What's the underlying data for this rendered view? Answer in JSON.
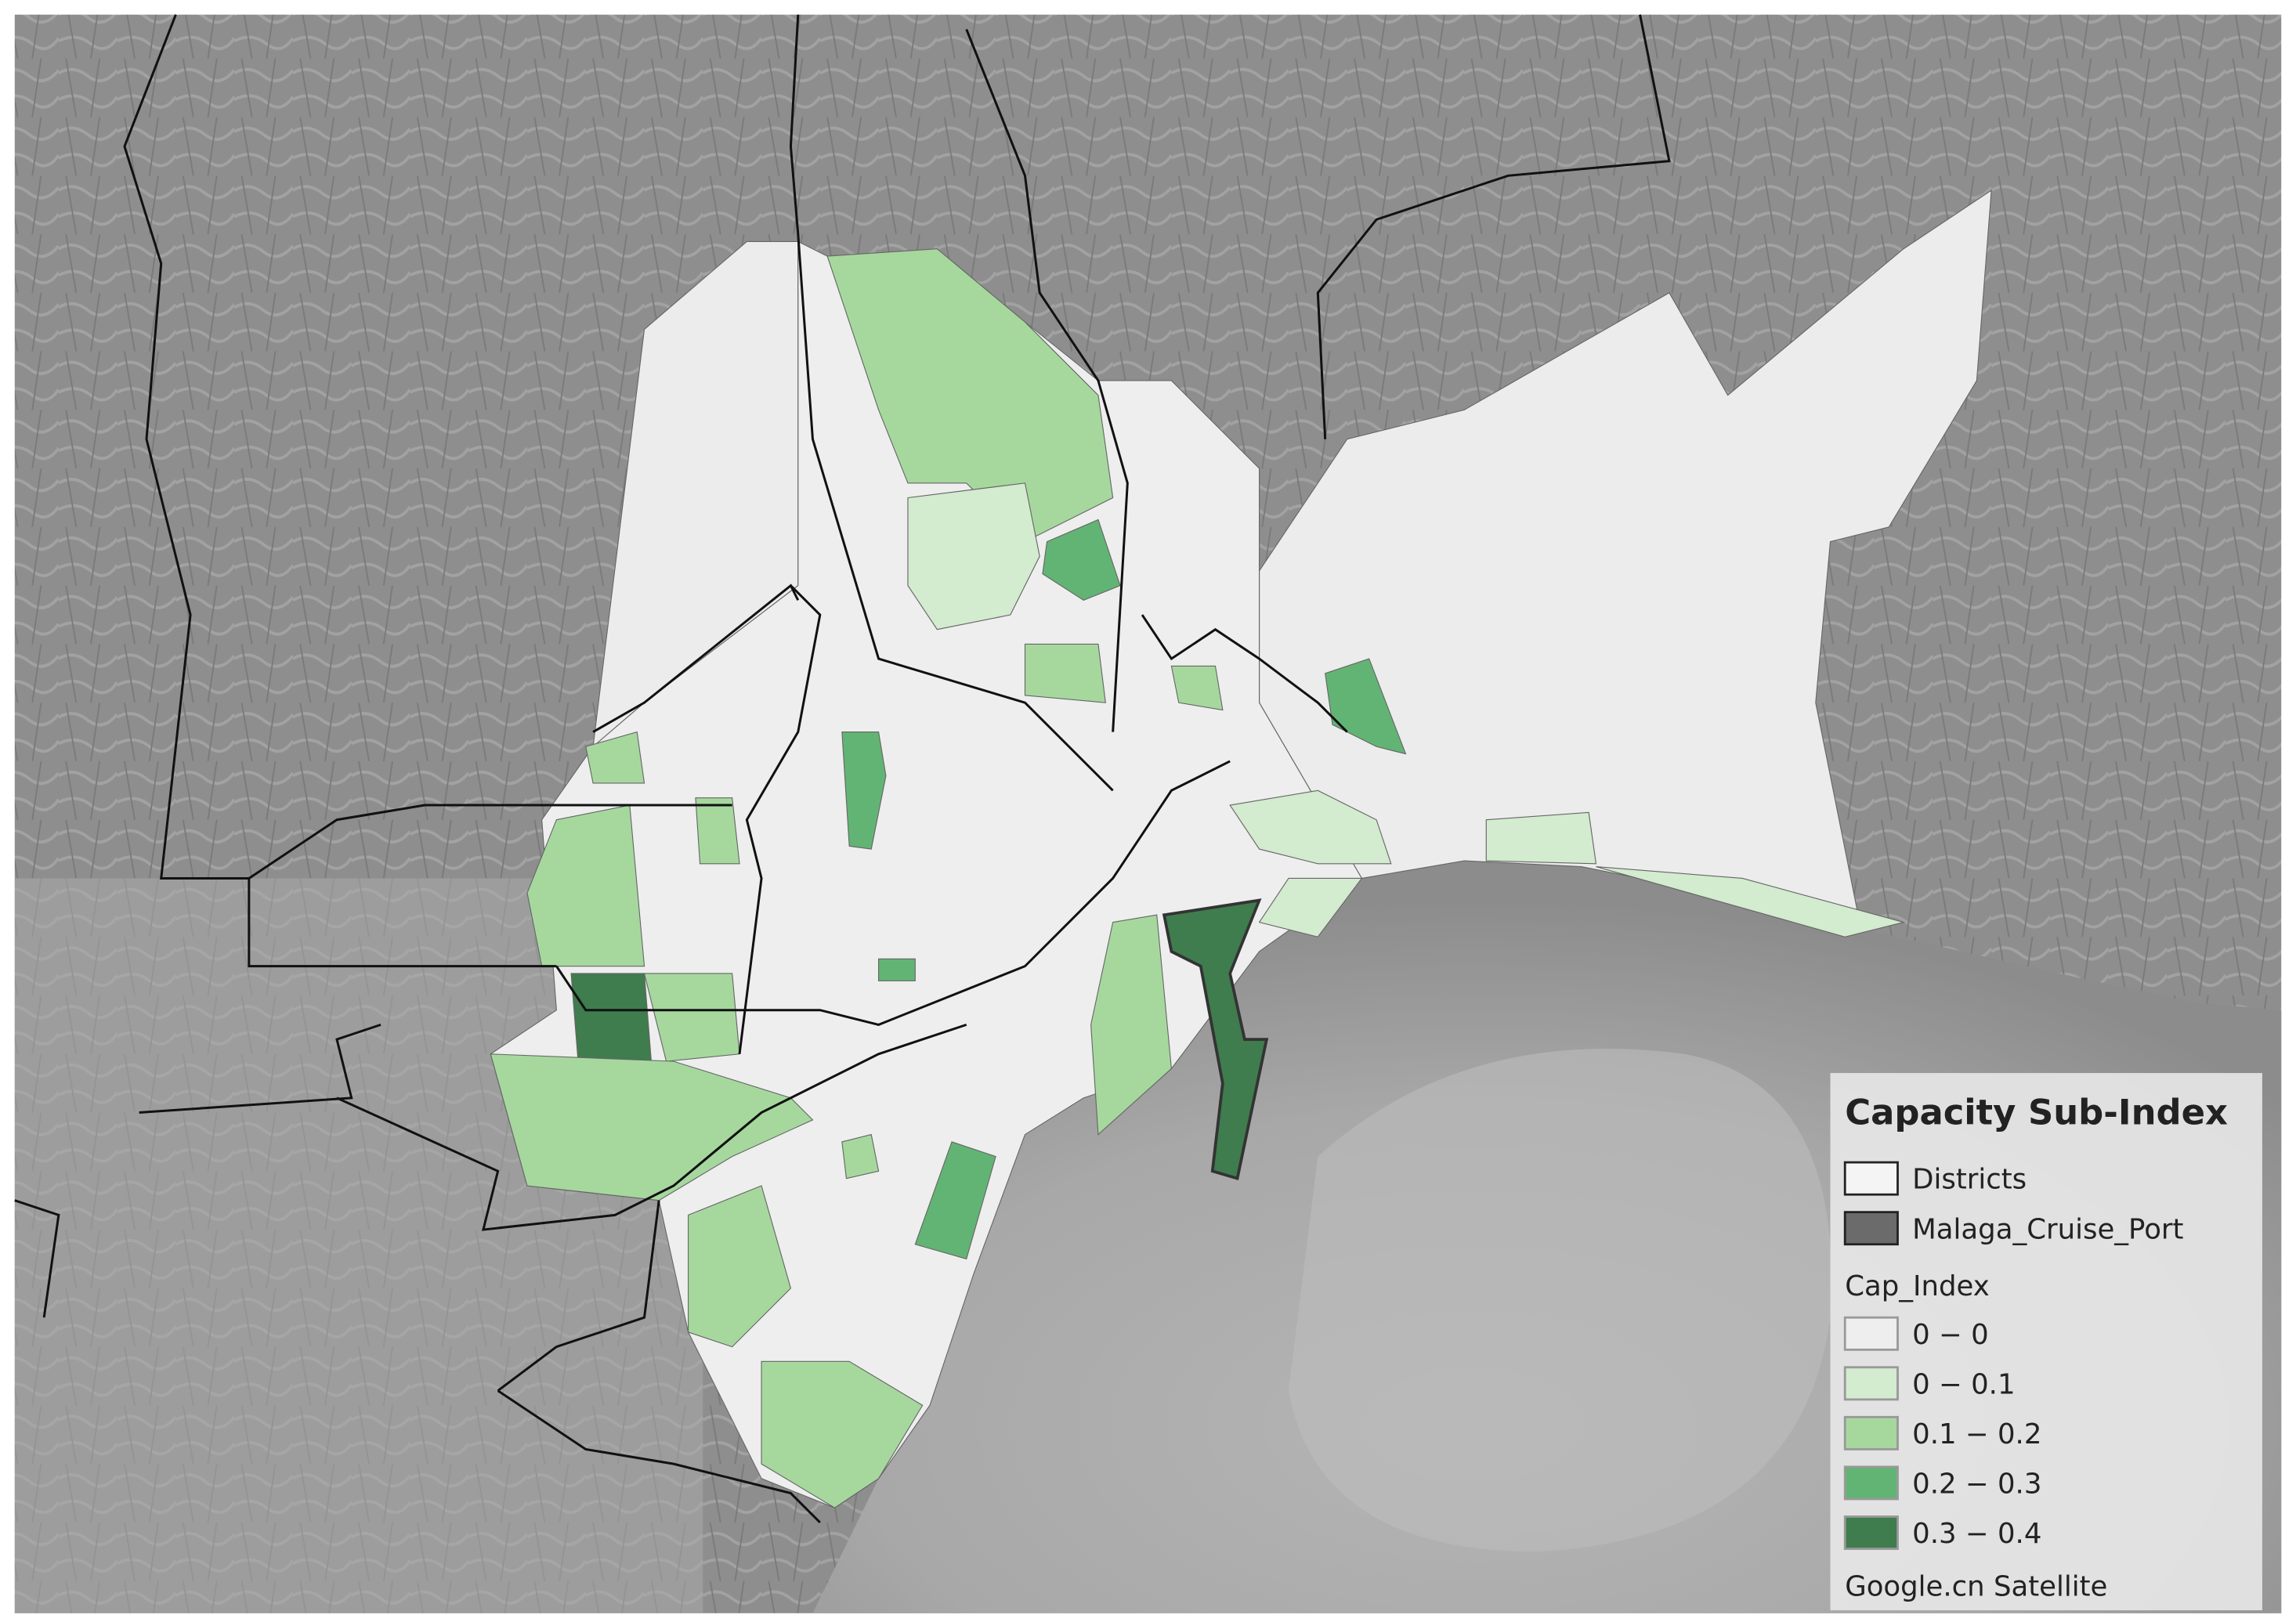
{
  "legend": {
    "title": "Capacity Sub-Index",
    "layers": [
      {
        "label": "Districts",
        "color": "#f4f4f4"
      },
      {
        "label": "Malaga_Cruise_Port",
        "color": "#6b6b6b"
      }
    ],
    "field": "Cap_Index",
    "classes": [
      {
        "label": "0 − 0",
        "color": "#eeeeee"
      },
      {
        "label": "0 − 0.1",
        "color": "#d3ebcf"
      },
      {
        "label": "0.1 − 0.2",
        "color": "#a6d89e"
      },
      {
        "label": "0.2 − 0.3",
        "color": "#62b474"
      },
      {
        "label": "0.3 − 0.4",
        "color": "#3f7c4e"
      }
    ],
    "basemap": "Google.cn Satellite"
  }
}
